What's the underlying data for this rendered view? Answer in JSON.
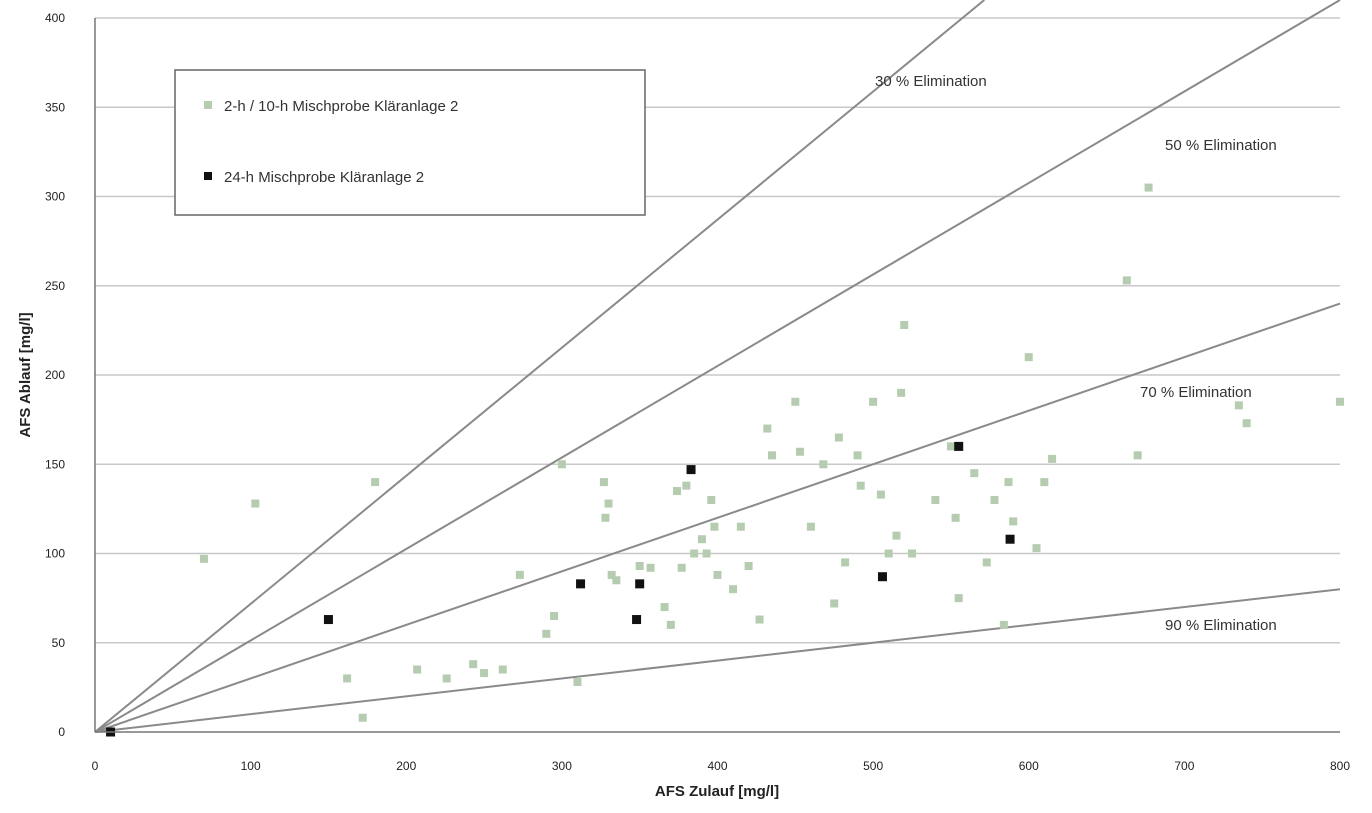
{
  "chart_data": {
    "type": "scatter",
    "xlabel": "AFS Zulauf [mg/l]",
    "ylabel": "AFS Ablauf [mg/l]",
    "xlim": [
      0,
      800
    ],
    "ylim": [
      0,
      400
    ],
    "x_ticks": [
      "0",
      "100",
      "200",
      "300",
      "400",
      "500",
      "600",
      "700",
      "800"
    ],
    "y_ticks": [
      "0",
      "50",
      "100",
      "150",
      "200",
      "250",
      "300",
      "350",
      "400"
    ],
    "grid": "horizontal",
    "legend_position": "top-left",
    "reference_lines": [
      {
        "label": "30 % Elimination",
        "slope": 0.7
      },
      {
        "label": "50 % Elimination",
        "slope": 0.5
      },
      {
        "label": "70 % Elimination",
        "slope": 0.3
      },
      {
        "label": "90 % Elimination",
        "slope": 0.1
      }
    ],
    "series": [
      {
        "name": "2-h / 10-h Mischprobe Kläranlage 2",
        "color": "#b5ccb0",
        "marker": "square",
        "points": [
          [
            70,
            97
          ],
          [
            103,
            128
          ],
          [
            162,
            30
          ],
          [
            172,
            8
          ],
          [
            180,
            140
          ],
          [
            207,
            35
          ],
          [
            226,
            30
          ],
          [
            243,
            38
          ],
          [
            250,
            33
          ],
          [
            262,
            35
          ],
          [
            273,
            88
          ],
          [
            290,
            55
          ],
          [
            295,
            65
          ],
          [
            300,
            150
          ],
          [
            310,
            28
          ],
          [
            327,
            140
          ],
          [
            328,
            120
          ],
          [
            330,
            128
          ],
          [
            332,
            88
          ],
          [
            335,
            85
          ],
          [
            350,
            93
          ],
          [
            357,
            92
          ],
          [
            366,
            70
          ],
          [
            370,
            60
          ],
          [
            374,
            135
          ],
          [
            377,
            92
          ],
          [
            380,
            138
          ],
          [
            385,
            100
          ],
          [
            390,
            108
          ],
          [
            393,
            100
          ],
          [
            396,
            130
          ],
          [
            398,
            115
          ],
          [
            400,
            88
          ],
          [
            410,
            80
          ],
          [
            415,
            115
          ],
          [
            420,
            93
          ],
          [
            427,
            63
          ],
          [
            432,
            170
          ],
          [
            435,
            155
          ],
          [
            450,
            185
          ],
          [
            453,
            157
          ],
          [
            460,
            115
          ],
          [
            468,
            150
          ],
          [
            475,
            72
          ],
          [
            478,
            165
          ],
          [
            482,
            95
          ],
          [
            490,
            155
          ],
          [
            492,
            138
          ],
          [
            500,
            185
          ],
          [
            505,
            133
          ],
          [
            510,
            100
          ],
          [
            515,
            110
          ],
          [
            518,
            190
          ],
          [
            520,
            228
          ],
          [
            525,
            100
          ],
          [
            540,
            130
          ],
          [
            550,
            160
          ],
          [
            553,
            120
          ],
          [
            555,
            75
          ],
          [
            565,
            145
          ],
          [
            573,
            95
          ],
          [
            578,
            130
          ],
          [
            584,
            60
          ],
          [
            587,
            140
          ],
          [
            590,
            118
          ],
          [
            600,
            210
          ],
          [
            605,
            103
          ],
          [
            610,
            140
          ],
          [
            615,
            153
          ],
          [
            663,
            253
          ],
          [
            670,
            155
          ],
          [
            677,
            305
          ],
          [
            735,
            183
          ],
          [
            740,
            173
          ],
          [
            800,
            185
          ]
        ]
      },
      {
        "name": "24-h Mischprobe Kläranlage 2",
        "color": "#111111",
        "marker": "square",
        "points": [
          [
            10,
            0
          ],
          [
            150,
            63
          ],
          [
            312,
            83
          ],
          [
            350,
            83
          ],
          [
            348,
            63
          ],
          [
            383,
            147
          ],
          [
            506,
            87
          ],
          [
            555,
            160
          ],
          [
            588,
            108
          ]
        ]
      }
    ]
  }
}
